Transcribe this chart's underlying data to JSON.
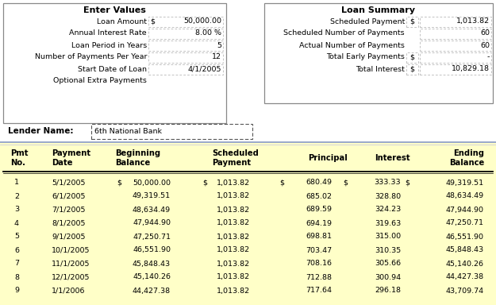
{
  "bg_yellow": "#FFFFC8",
  "bg_white": "#FFFFFF",
  "bg_table": "#FFFFC8",
  "enter_values_title": "Enter Values",
  "loan_summary_title": "Loan Summary",
  "enter_values": [
    [
      "Loan Amount",
      "$",
      "50,000.00"
    ],
    [
      "Annual Interest Rate",
      "",
      "8.00 %"
    ],
    [
      "Loan Period in Years",
      "",
      "5"
    ],
    [
      "Number of Payments Per Year",
      "",
      "12"
    ],
    [
      "Start Date of Loan",
      "",
      "4/1/2005"
    ],
    [
      "Optional Extra Payments",
      "",
      ""
    ]
  ],
  "loan_summary": [
    [
      "Scheduled Payment",
      "$",
      "1,013.82"
    ],
    [
      "Scheduled Number of Payments",
      "",
      "60"
    ],
    [
      "Actual Number of Payments",
      "",
      "60"
    ],
    [
      "Total Early Payments",
      "$",
      "-"
    ],
    [
      "Total Interest",
      "$",
      "10,829.18"
    ]
  ],
  "lender_label": "Lender Name:",
  "lender_value": "6th National Bank",
  "table_rows": [
    [
      "1",
      "5/1/2005",
      "$",
      "50,000.00",
      "$",
      "1,013.82",
      "$",
      "680.49",
      "$",
      "333.33",
      "$",
      "49,319.51"
    ],
    [
      "2",
      "6/1/2005",
      "",
      "49,319.51",
      "",
      "1,013.82",
      "",
      "685.02",
      "",
      "328.80",
      "",
      "48,634.49"
    ],
    [
      "3",
      "7/1/2005",
      "",
      "48,634.49",
      "",
      "1,013.82",
      "",
      "689.59",
      "",
      "324.23",
      "",
      "47,944.90"
    ],
    [
      "4",
      "8/1/2005",
      "",
      "47,944.90",
      "",
      "1,013.82",
      "",
      "694.19",
      "",
      "319.63",
      "",
      "47,250.71"
    ],
    [
      "5",
      "9/1/2005",
      "",
      "47,250.71",
      "",
      "1,013.82",
      "",
      "698.81",
      "",
      "315.00",
      "",
      "46,551.90"
    ],
    [
      "6",
      "10/1/2005",
      "",
      "46,551.90",
      "",
      "1,013.82",
      "",
      "703.47",
      "",
      "310.35",
      "",
      "45,848.43"
    ],
    [
      "7",
      "11/1/2005",
      "",
      "45,848.43",
      "",
      "1,013.82",
      "",
      "708.16",
      "",
      "305.66",
      "",
      "45,140.26"
    ],
    [
      "8",
      "12/1/2005",
      "",
      "45,140.26",
      "",
      "1,013.82",
      "",
      "712.88",
      "",
      "300.94",
      "",
      "44,427.38"
    ],
    [
      "9",
      "1/1/2006",
      "",
      "44,427.38",
      "",
      "1,013.82",
      "",
      "717.64",
      "",
      "296.18",
      "",
      "43,709.74"
    ]
  ],
  "sep_color": "#8899CC",
  "grid_color": "#AAAAAA",
  "box_edge_color": "#888888",
  "input_box_color": "#EEEEEE"
}
